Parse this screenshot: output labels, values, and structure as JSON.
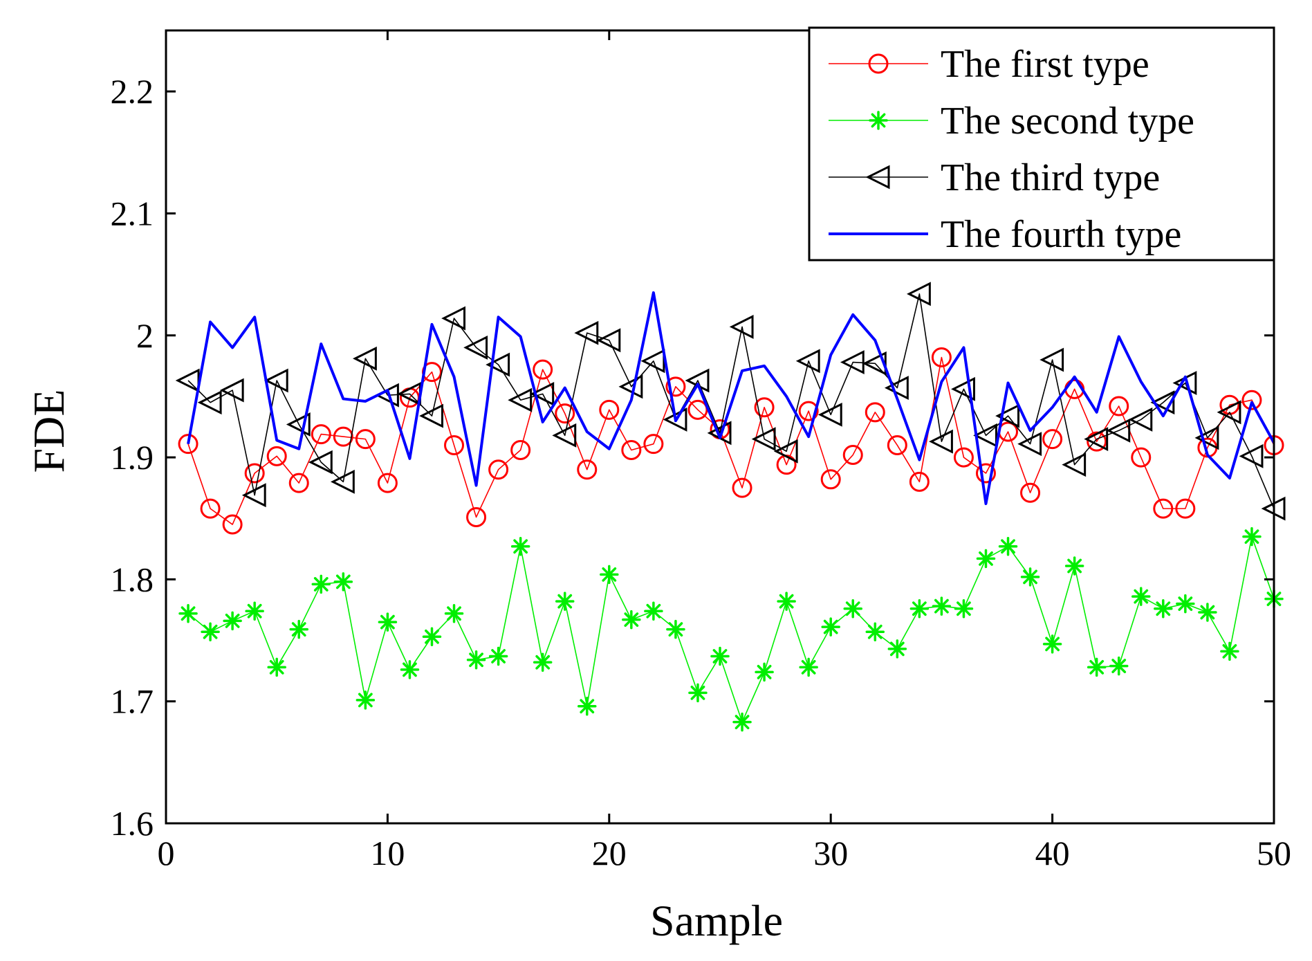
{
  "chart_data": {
    "type": "line",
    "title": "",
    "xlabel": "Sample",
    "ylabel": "FDE",
    "xlim": [
      0,
      50
    ],
    "ylim": [
      1.6,
      2.25
    ],
    "xticks": [
      0,
      10,
      20,
      30,
      40,
      50
    ],
    "xtick_labels": [
      "0",
      "10",
      "20",
      "30",
      "40",
      "50"
    ],
    "yticks": [
      1.6,
      1.7,
      1.8,
      1.9,
      2.0,
      2.1,
      2.2
    ],
    "ytick_labels": [
      "1.6",
      "1.7",
      "1.8",
      "1.9",
      "2",
      "2.1",
      "2.2"
    ],
    "grid": false,
    "legend_position": "top-right",
    "x": [
      1,
      2,
      3,
      4,
      5,
      6,
      7,
      8,
      9,
      10,
      11,
      12,
      13,
      14,
      15,
      16,
      17,
      18,
      19,
      20,
      21,
      22,
      23,
      24,
      25,
      26,
      27,
      28,
      29,
      30,
      31,
      32,
      33,
      34,
      35,
      36,
      37,
      38,
      39,
      40,
      41,
      42,
      43,
      44,
      45,
      46,
      47,
      48,
      49,
      50
    ],
    "series": [
      {
        "name": "The first type",
        "color": "#ff0000",
        "marker": "circle",
        "values": [
          1.911,
          1.858,
          1.845,
          1.887,
          1.901,
          1.879,
          1.919,
          1.917,
          1.915,
          1.879,
          1.949,
          1.97,
          1.91,
          1.851,
          1.89,
          1.906,
          1.972,
          1.936,
          1.89,
          1.939,
          1.906,
          1.911,
          1.958,
          1.939,
          1.923,
          1.875,
          1.941,
          1.894,
          1.938,
          1.882,
          1.902,
          1.937,
          1.91,
          1.88,
          1.982,
          1.9,
          1.887,
          1.921,
          1.871,
          1.915,
          1.956,
          1.913,
          1.942,
          1.9,
          1.858,
          1.858,
          1.908,
          1.943,
          1.947,
          1.91
        ]
      },
      {
        "name": "The second type",
        "color": "#00ee00",
        "marker": "star",
        "values": [
          1.772,
          1.757,
          1.766,
          1.774,
          1.728,
          1.759,
          1.796,
          1.798,
          1.701,
          1.765,
          1.726,
          1.753,
          1.772,
          1.734,
          1.737,
          1.827,
          1.732,
          1.782,
          1.696,
          1.804,
          1.767,
          1.774,
          1.759,
          1.707,
          1.737,
          1.683,
          1.724,
          1.782,
          1.728,
          1.761,
          1.776,
          1.757,
          1.743,
          1.776,
          1.778,
          1.776,
          1.817,
          1.827,
          1.802,
          1.747,
          1.811,
          1.728,
          1.729,
          1.786,
          1.776,
          1.78,
          1.773,
          1.741,
          1.835,
          1.784
        ]
      },
      {
        "name": "The third type",
        "color": "#000000",
        "marker": "triangle-left",
        "values": [
          1.963,
          1.945,
          1.955,
          1.869,
          1.963,
          1.927,
          1.896,
          1.88,
          1.981,
          1.951,
          1.952,
          1.934,
          2.014,
          1.99,
          1.976,
          1.947,
          1.952,
          1.918,
          2.002,
          1.996,
          1.958,
          1.979,
          1.931,
          1.963,
          1.92,
          2.007,
          1.915,
          1.905,
          1.979,
          1.935,
          1.978,
          1.977,
          1.957,
          2.034,
          1.913,
          1.956,
          1.918,
          1.934,
          1.911,
          1.98,
          1.894,
          1.915,
          1.922,
          1.931,
          1.945,
          1.961,
          1.916,
          1.937,
          1.901,
          1.858
        ]
      },
      {
        "name": "The fourth type",
        "color": "#0000ff",
        "marker": "none",
        "values": [
          1.911,
          2.011,
          1.99,
          2.015,
          1.914,
          1.907,
          1.993,
          1.948,
          1.946,
          1.955,
          1.899,
          2.009,
          1.966,
          1.877,
          2.015,
          1.999,
          1.929,
          1.957,
          1.921,
          1.907,
          1.947,
          2.035,
          1.93,
          1.96,
          1.916,
          1.971,
          1.975,
          1.95,
          1.917,
          1.984,
          2.017,
          1.996,
          1.948,
          1.898,
          1.962,
          1.99,
          1.862,
          1.961,
          1.922,
          1.941,
          1.966,
          1.937,
          1.999,
          1.962,
          1.934,
          1.966,
          1.902,
          1.883,
          1.945,
          1.912
        ]
      }
    ]
  }
}
